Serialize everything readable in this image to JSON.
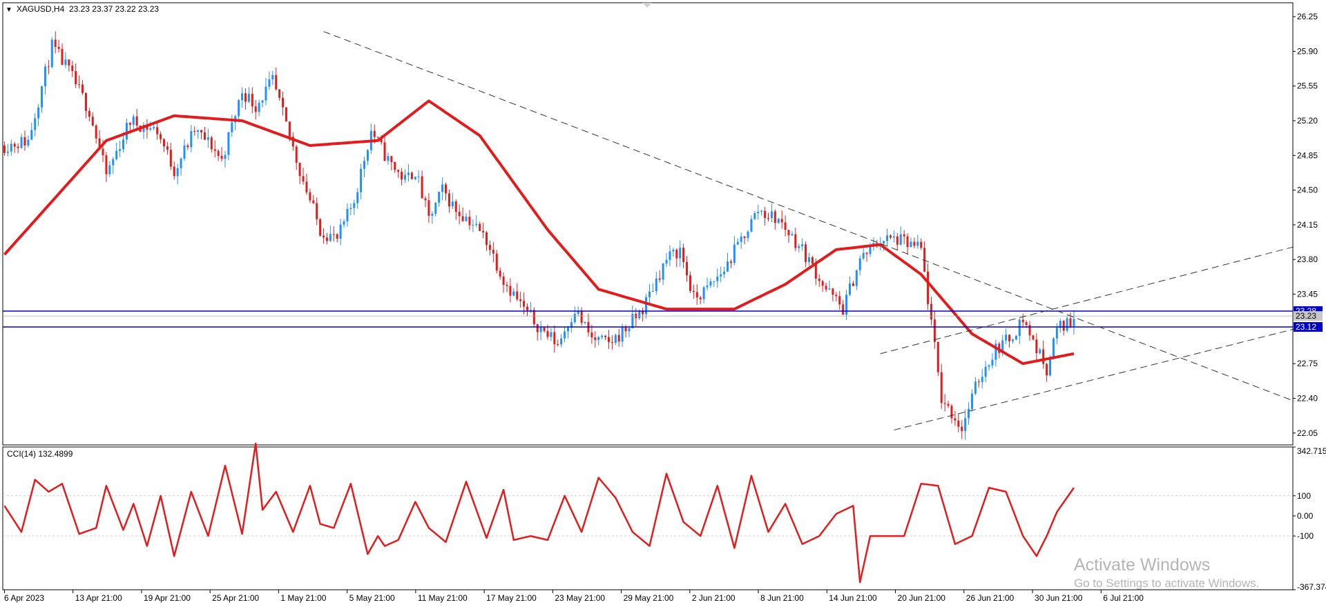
{
  "header": {
    "symbol": "XAGUSD,H4",
    "ohlc": "23.23 23.37 23.22 23.23"
  },
  "cci_header": "CCI(14) 132.4899",
  "watermark": {
    "title": "Activate Windows",
    "subtitle": "Go to Settings to activate Windows."
  },
  "colors": {
    "bull": "#1e90ff",
    "bear": "#e31b1b",
    "ma": "#e31b1b",
    "level_line": "#0000cc",
    "trendline": "#333333",
    "grid_dot": "#cccccc",
    "axis": "#000000"
  },
  "chart_data": [
    {
      "type": "candlestick",
      "title": "",
      "price_axis": {
        "ylim": [
          21.93,
          26.39
        ],
        "ticks": [
          "26.25",
          "25.90",
          "25.55",
          "25.20",
          "24.85",
          "24.50",
          "24.15",
          "23.80",
          "23.45",
          "22.75",
          "22.40",
          "22.05"
        ]
      },
      "time_axis": {
        "ticks": [
          "6 Apr 2023",
          "13 Apr 21:00",
          "19 Apr 21:00",
          "25 Apr 21:00",
          "1 May 21:00",
          "5 May 21:00",
          "11 May 21:00",
          "17 May 21:00",
          "23 May 21:00",
          "29 May 21:00",
          "2 Jun 21:00",
          "8 Jun 21:00",
          "14 Jun 21:00",
          "20 Jun 21:00",
          "26 Jun 21:00",
          "30 Jun 21:00",
          "6 Jul 21:00"
        ]
      },
      "price_labels": [
        {
          "value": 23.28,
          "text": "23.28"
        },
        {
          "value": 23.12,
          "text": "23.12"
        },
        {
          "value": 23.23,
          "text": "23.23"
        }
      ],
      "price_path": {
        "x": [
          0,
          7,
          14,
          19,
          25,
          30,
          37,
          45,
          50,
          56,
          61,
          64,
          70,
          74,
          79,
          87,
          93,
          98,
          103,
          108,
          113,
          118,
          121,
          125,
          129,
          133,
          137,
          142,
          147,
          153,
          158,
          163,
          168,
          173,
          178,
          183,
          188,
          192,
          195,
          199,
          203,
          207,
          212,
          217,
          222,
          228,
          235,
          242,
          247,
          252,
          258,
          263,
          270,
          276,
          282,
          287,
          292,
          296,
          300,
          304,
          307,
          310,
          315
        ],
        "close": [
          24.95,
          25.0,
          25.95,
          25.7,
          25.3,
          24.65,
          25.2,
          25.1,
          24.7,
          25.1,
          24.95,
          24.8,
          25.5,
          25.35,
          25.6,
          24.7,
          24.1,
          24.0,
          24.4,
          25.1,
          24.8,
          24.6,
          24.7,
          24.2,
          24.5,
          24.3,
          24.2,
          24.0,
          23.6,
          23.3,
          23.1,
          22.95,
          23.3,
          23.0,
          22.95,
          23.1,
          23.3,
          23.6,
          23.8,
          23.9,
          23.4,
          23.5,
          23.7,
          24.0,
          24.3,
          24.2,
          23.9,
          23.5,
          23.3,
          23.8,
          24.0,
          24.0,
          23.9,
          22.4,
          22.1,
          22.6,
          22.9,
          23.0,
          23.2,
          22.9,
          22.7,
          23.1,
          23.2
        ],
        "volatility": 0.15
      },
      "moving_average": {
        "x": [
          0,
          30,
          50,
          70,
          90,
          110,
          125,
          140,
          160,
          175,
          195,
          215,
          230,
          245,
          258,
          270,
          285,
          300,
          315
        ],
        "y": [
          23.85,
          25.0,
          25.25,
          25.2,
          24.95,
          25.0,
          25.4,
          25.05,
          24.1,
          23.5,
          23.3,
          23.3,
          23.55,
          23.9,
          23.95,
          23.65,
          23.05,
          22.75,
          22.85
        ]
      },
      "horizontal_lines": [
        23.28,
        23.12
      ],
      "trendlines": [
        {
          "x1": 94,
          "y1": 26.1,
          "x2": 380,
          "y2": 22.37
        },
        {
          "x1": 262,
          "y1": 22.08,
          "x2": 380,
          "y2": 23.1
        },
        {
          "x1": 258,
          "y1": 22.85,
          "x2": 380,
          "y2": 23.93
        }
      ]
    },
    {
      "type": "line",
      "title": "CCI(14)",
      "ylim": [
        -367.374,
        342.715
      ],
      "ticks": [
        "342.715",
        "100",
        "0.00",
        "-100",
        "-367.374"
      ],
      "levels": [
        100,
        -100
      ],
      "series": [
        {
          "x": [
            0,
            5,
            9,
            13,
            17,
            22,
            27,
            30,
            35,
            38,
            42,
            46,
            50,
            55,
            60,
            65,
            70,
            74,
            76,
            80,
            85,
            90,
            93,
            97,
            102,
            107,
            110,
            112,
            116,
            121,
            125,
            130,
            136,
            142,
            147,
            150,
            155,
            160,
            165,
            170,
            175,
            180,
            185,
            190,
            195,
            200,
            205,
            210,
            215,
            220,
            225,
            230,
            235,
            240,
            245,
            250,
            252,
            255,
            260,
            265,
            270,
            275,
            280,
            285,
            290,
            295,
            300,
            304,
            307,
            310,
            315
          ],
          "values": [
            50,
            -80,
            180,
            120,
            160,
            -90,
            -60,
            150,
            -70,
            60,
            -150,
            100,
            -200,
            120,
            -100,
            250,
            -90,
            360,
            30,
            120,
            -80,
            150,
            -40,
            -60,
            160,
            -190,
            -100,
            -150,
            -120,
            70,
            -60,
            -130,
            170,
            -110,
            130,
            -120,
            -100,
            -120,
            100,
            -80,
            190,
            90,
            -80,
            -150,
            210,
            -30,
            -100,
            150,
            -160,
            200,
            -80,
            60,
            -140,
            -100,
            10,
            50,
            -330,
            -100,
            -100,
            -100,
            160,
            150,
            -140,
            -100,
            140,
            120,
            -100,
            -200,
            -100,
            20,
            140
          ]
        }
      ]
    }
  ]
}
